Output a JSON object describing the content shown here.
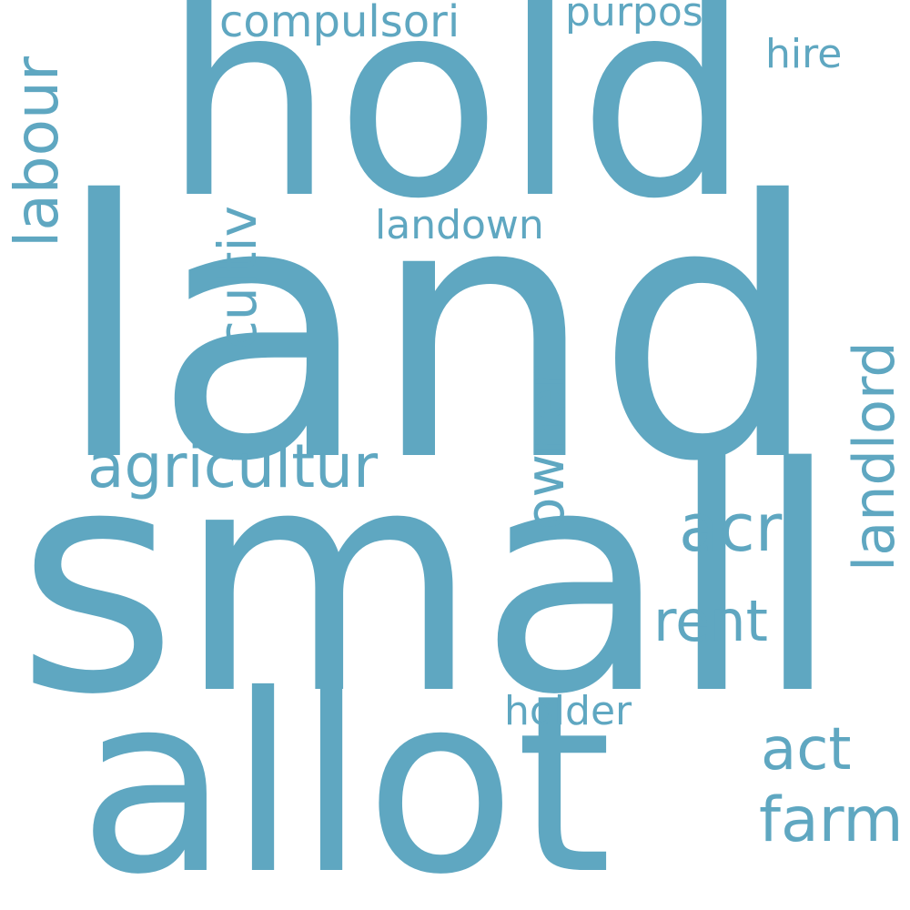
{
  "wordcloud": {
    "color": "#5fa7c1",
    "background": "#ffffff",
    "words": [
      {
        "key": "land",
        "text": "land"
      },
      {
        "key": "small",
        "text": "small"
      },
      {
        "key": "hold",
        "text": "hold"
      },
      {
        "key": "allot",
        "text": "allot"
      },
      {
        "key": "agricultur",
        "text": "agricultur"
      },
      {
        "key": "labour",
        "text": "labour"
      },
      {
        "key": "cultiv",
        "text": "cultiv"
      },
      {
        "key": "owner",
        "text": "owner"
      },
      {
        "key": "landlord",
        "text": "landlord"
      },
      {
        "key": "acr",
        "text": "acr"
      },
      {
        "key": "rent",
        "text": "rent"
      },
      {
        "key": "act",
        "text": "act"
      },
      {
        "key": "farm",
        "text": "farm"
      },
      {
        "key": "compulsori",
        "text": "compulsori"
      },
      {
        "key": "purpos",
        "text": "purpos"
      },
      {
        "key": "hire",
        "text": "hire"
      },
      {
        "key": "landown",
        "text": "landown"
      },
      {
        "key": "holder",
        "text": "holder"
      }
    ]
  }
}
